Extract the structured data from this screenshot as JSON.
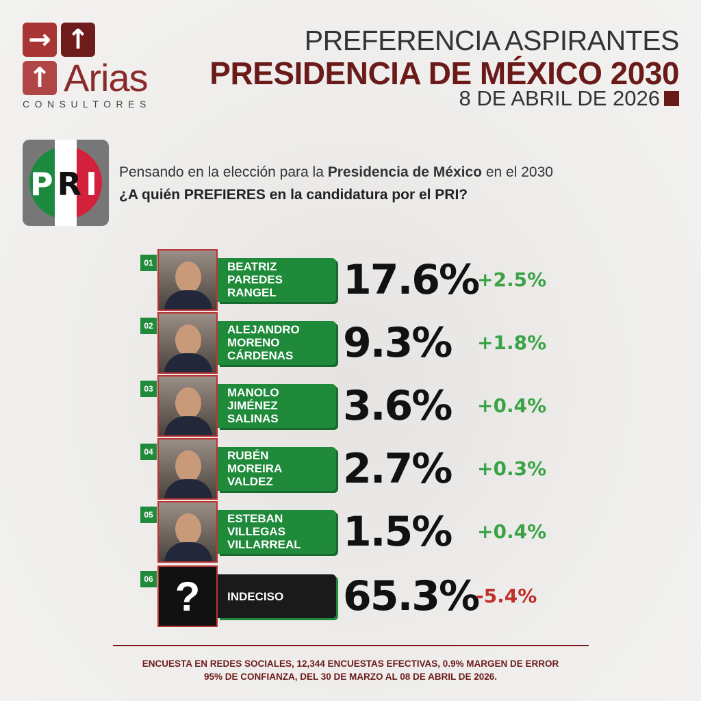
{
  "brand": {
    "name": "Arias",
    "subtitle": "CONSULTORES"
  },
  "header": {
    "line1": "PREFERENCIA ASPIRANTES",
    "line2": "PRESIDENCIA DE MÉXICO 2030",
    "date": "8 DE ABRIL DE 2026"
  },
  "party": {
    "logo_text": "PRI"
  },
  "question": {
    "line1_a": "Pensando en la elección para la ",
    "line1_b": "Presidencia de México",
    "line1_c": " en el 2030",
    "line2": "¿A quién PREFIERES en la candidatura por el PRI?"
  },
  "colors": {
    "green": "#1f8a3a",
    "dark_red": "#6b1a1a",
    "positive": "#3aa346",
    "negative": "#c0302b"
  },
  "candidates": [
    {
      "rank": "01",
      "name": [
        "BEATRIZ",
        "PAREDES",
        "RANGEL"
      ],
      "pct": "17.6%",
      "change": "+2.5%"
    },
    {
      "rank": "02",
      "name": [
        "ALEJANDRO",
        "MORENO",
        "CÁRDENAS"
      ],
      "pct": "9.3%",
      "change": "+1.8%"
    },
    {
      "rank": "03",
      "name": [
        "MANOLO",
        "JIMÉNEZ",
        "SALINAS"
      ],
      "pct": "3.6%",
      "change": "+0.4%"
    },
    {
      "rank": "04",
      "name": [
        "RUBÉN",
        "MOREIRA",
        "VALDEZ"
      ],
      "pct": "2.7%",
      "change": "+0.3%"
    },
    {
      "rank": "05",
      "name": [
        "ESTEBAN",
        "VILLEGAS",
        "VILLARREAL"
      ],
      "pct": "1.5%",
      "change": "+0.4%"
    },
    {
      "rank": "06",
      "name": [
        "INDECISO"
      ],
      "pct": "65.3%",
      "change": "-5.4%",
      "icon": "?"
    }
  ],
  "footer": {
    "line1": "ENCUESTA EN REDES SOCIALES, 12,344 ENCUESTAS EFECTIVAS, 0.9% MARGEN DE ERROR",
    "line2": "95% DE CONFIANZA, DEL 30 DE MARZO AL 08 DE ABRIL DE 2026."
  }
}
